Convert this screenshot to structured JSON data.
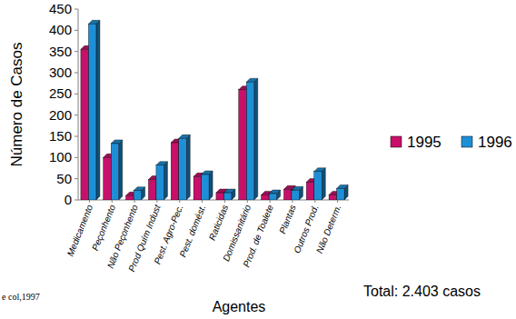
{
  "chart_data": {
    "type": "bar",
    "y_label": "Número de Casos",
    "x_label": "Agentes",
    "annotations": [
      "Total: 2.403 casos",
      "e col,1997"
    ],
    "categories": [
      "Medicamento",
      "Peçonhento",
      "Não Peçonhento",
      "Prod Quím Indust",
      "Pest. Agro-Pec.",
      "Pest. domést.",
      "Raticidas",
      "Domissanitário",
      "Prod. de Toalete",
      "Plantas",
      "Outros Prod.",
      "Não Determ."
    ],
    "series": [
      {
        "name": "1995",
        "color": "#c8106a",
        "values": [
          355,
          100,
          10,
          48,
          135,
          55,
          17,
          260,
          12,
          25,
          42,
          12
        ]
      },
      {
        "name": "1996",
        "color": "#1e8fd6",
        "values": [
          415,
          133,
          22,
          82,
          145,
          60,
          17,
          278,
          15,
          23,
          67,
          27
        ]
      }
    ],
    "ylim": [
      0,
      450
    ],
    "yticks": [
      0,
      50,
      100,
      150,
      200,
      250,
      300,
      350,
      400,
      450
    ],
    "grid": false,
    "legend": "right"
  }
}
